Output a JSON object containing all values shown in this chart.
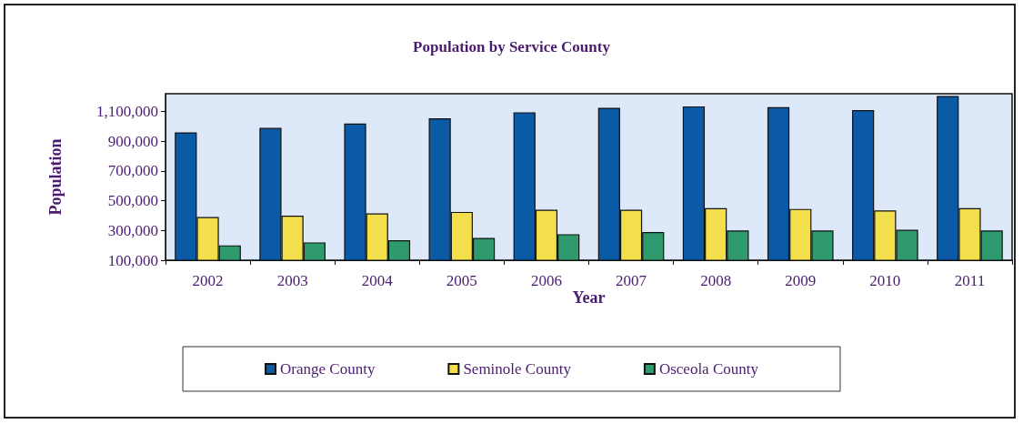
{
  "chart_data": {
    "type": "bar",
    "title": "Population by Service County",
    "xlabel": "Year",
    "ylabel": "Population",
    "categories": [
      "2002",
      "2003",
      "2004",
      "2005",
      "2006",
      "2007",
      "2008",
      "2009",
      "2010",
      "2011"
    ],
    "series": [
      {
        "name": "Orange County",
        "color": "#0b5aa6",
        "values": [
          960000,
          990000,
          1020000,
          1055000,
          1095000,
          1125000,
          1135000,
          1130000,
          1110000,
          1205000
        ]
      },
      {
        "name": "Seminole County",
        "color": "#f3df4c",
        "values": [
          390000,
          400000,
          415000,
          425000,
          440000,
          440000,
          450000,
          445000,
          435000,
          450000
        ]
      },
      {
        "name": "Osceola County",
        "color": "#2f9a6e",
        "values": [
          200000,
          220000,
          235000,
          250000,
          275000,
          290000,
          300000,
          300000,
          305000,
          300000
        ]
      }
    ],
    "ylim": [
      100000,
      1220000
    ],
    "yticks": [
      {
        "value": 100000,
        "label": "100,000"
      },
      {
        "value": 300000,
        "label": "300,000"
      },
      {
        "value": 500000,
        "label": "500,000"
      },
      {
        "value": 700000,
        "label": "700,000"
      },
      {
        "value": 900000,
        "label": "900,000"
      },
      {
        "value": 1100000,
        "label": "1,100,000"
      }
    ],
    "grid": false,
    "legend": "bottom"
  }
}
